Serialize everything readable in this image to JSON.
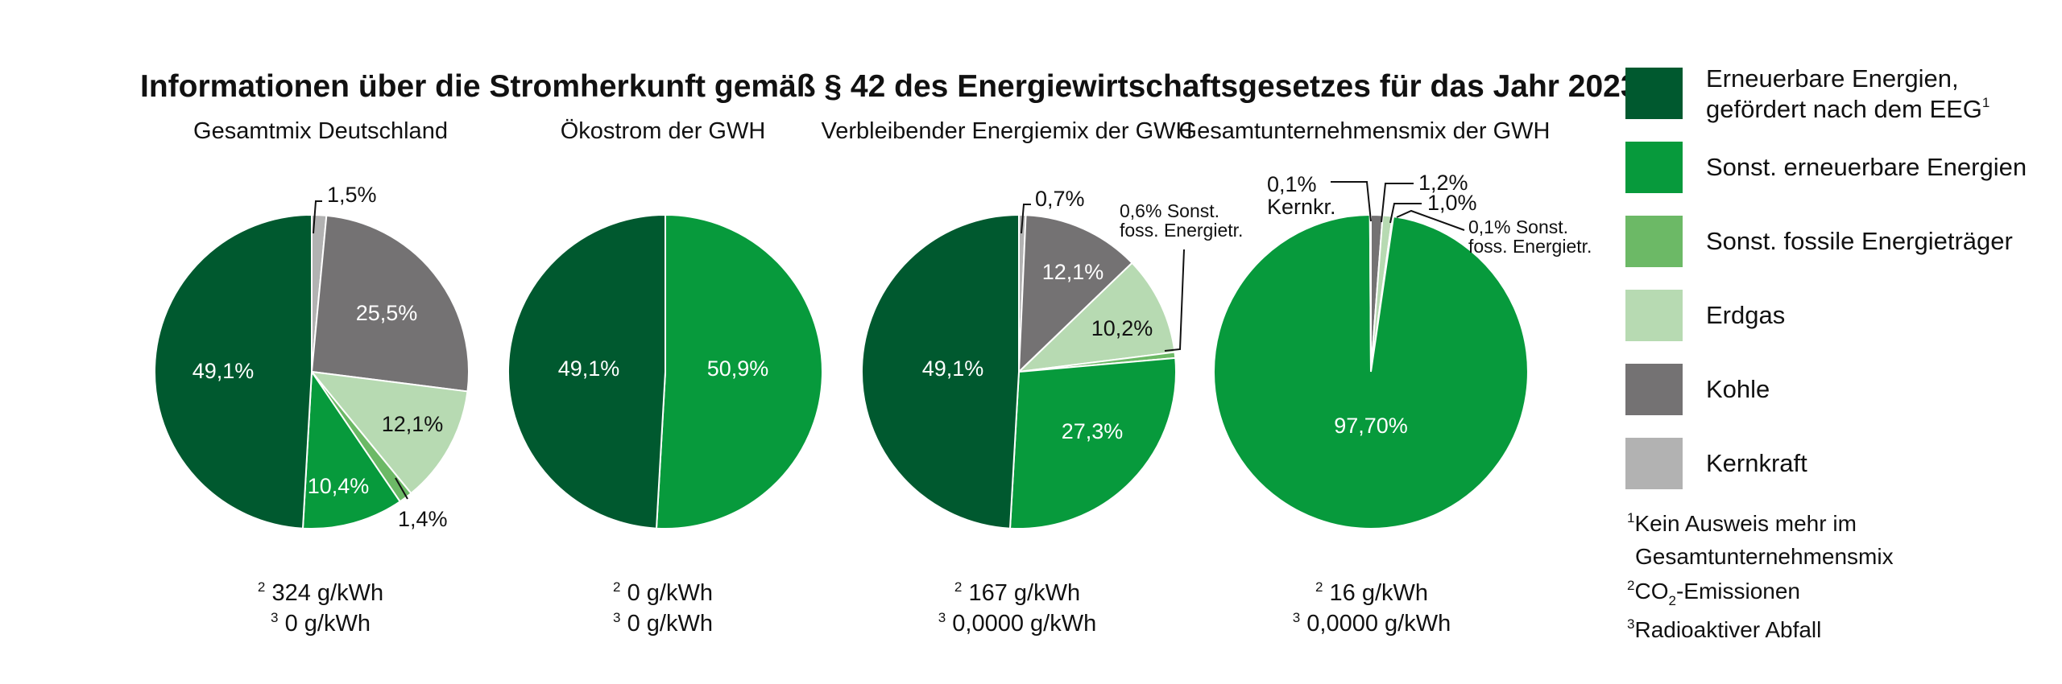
{
  "title": "Informationen über die Stromherkunft gemäß § 42 des Energiewirtschaftsgesetzes für das Jahr 2023",
  "colors": {
    "eeg": "#00592f",
    "sonst_ee": "#079a3c",
    "sonst_fossil": "#6cb966",
    "erdgas": "#b7dab2",
    "kohle": "#747273",
    "kernkraft": "#b2b2b2"
  },
  "legend": {
    "items": [
      {
        "key": "eeg",
        "lines": [
          "Erneuerbare Energien,",
          "gefördert nach dem EEG"
        ],
        "sup": "1"
      },
      {
        "key": "sonst_ee",
        "lines": [
          "Sonst. erneuerbare Energien"
        ]
      },
      {
        "key": "sonst_fossil",
        "lines": [
          "Sonst. fossile Energieträger"
        ]
      },
      {
        "key": "erdgas",
        "lines": [
          "Erdgas"
        ]
      },
      {
        "key": "kohle",
        "lines": [
          "Kohle"
        ]
      },
      {
        "key": "kernkraft",
        "lines": [
          "Kernkraft"
        ]
      }
    ],
    "notes": [
      {
        "sup": "1",
        "lines": [
          "Kein Ausweis mehr im",
          "Gesamtunternehmensmix"
        ]
      },
      {
        "sup": "2",
        "parts": [
          "CO",
          "2",
          "-Emissionen"
        ]
      },
      {
        "sup": "3",
        "lines": [
          "Radioaktiver Abfall"
        ]
      }
    ]
  },
  "chart_data": [
    {
      "type": "pie",
      "title": "Gesamtmix Deutschland",
      "slices": [
        {
          "name": "Kernkraft",
          "value": 1.5,
          "label": "1,5%",
          "color": "kernkraft"
        },
        {
          "name": "Kohle",
          "value": 25.5,
          "label": "25,5%",
          "color": "kohle"
        },
        {
          "name": "Erdgas",
          "value": 12.1,
          "label": "12,1%",
          "color": "erdgas"
        },
        {
          "name": "Sonst. fossile Energieträger",
          "value": 1.4,
          "label": "1,4%",
          "color": "sonst_fossil"
        },
        {
          "name": "Sonst. erneuerbare Energien",
          "value": 10.4,
          "label": "10,4%",
          "color": "sonst_ee"
        },
        {
          "name": "Erneuerbare Energien, gefördert nach dem EEG",
          "value": 49.1,
          "label": "49,1%",
          "color": "eeg"
        }
      ],
      "footnotes": [
        {
          "sup": "2",
          "text": "324 g/kWh"
        },
        {
          "sup": "3",
          "text": "0 g/kWh"
        }
      ]
    },
    {
      "type": "pie",
      "title": "Ökostrom der GWH",
      "slices": [
        {
          "name": "Sonst. erneuerbare Energien",
          "value": 50.9,
          "label": "50,9%",
          "color": "sonst_ee"
        },
        {
          "name": "Erneuerbare Energien, gefördert nach dem EEG",
          "value": 49.1,
          "label": "49,1%",
          "color": "eeg"
        }
      ],
      "footnotes": [
        {
          "sup": "2",
          "text": "0 g/kWh"
        },
        {
          "sup": "3",
          "text": "0 g/kWh"
        }
      ]
    },
    {
      "type": "pie",
      "title": "Verbleibender Energiemix der GWH",
      "slices": [
        {
          "name": "Kernkraft",
          "value": 0.7,
          "label": "0,7%",
          "color": "kernkraft"
        },
        {
          "name": "Kohle",
          "value": 12.1,
          "label": "12,1%",
          "color": "kohle"
        },
        {
          "name": "Erdgas",
          "value": 10.2,
          "label": "10,2%",
          "color": "erdgas"
        },
        {
          "name": "Sonst. fossile Energieträger",
          "value": 0.6,
          "label": [
            "0,6% Sonst.",
            "foss. Energietr."
          ],
          "color": "sonst_fossil"
        },
        {
          "name": "Sonst. erneuerbare Energien",
          "value": 27.3,
          "label": "27,3%",
          "color": "sonst_ee"
        },
        {
          "name": "Erneuerbare Energien, gefördert nach dem EEG",
          "value": 49.1,
          "label": "49,1%",
          "color": "eeg"
        }
      ],
      "footnotes": [
        {
          "sup": "2",
          "text": "167 g/kWh"
        },
        {
          "sup": "3",
          "text": "0,0000 g/kWh"
        }
      ]
    },
    {
      "type": "pie",
      "title": "Gesamtunternehmensmix der GWH",
      "slices": [
        {
          "name": "Kohle",
          "value": 1.2,
          "label": "1,2%",
          "color": "kohle"
        },
        {
          "name": "Erdgas",
          "value": 1.0,
          "label": "1,0%",
          "color": "erdgas"
        },
        {
          "name": "Sonst. fossile Energieträger",
          "value": 0.1,
          "label": [
            "0,1% Sonst.",
            "foss. Energietr."
          ],
          "color": "sonst_fossil"
        },
        {
          "name": "Sonst. erneuerbare Energien",
          "value": 97.7,
          "label": "97,70%",
          "color": "sonst_ee"
        },
        {
          "name": "Kernkraft",
          "value": 0.1,
          "label": [
            "0,1%",
            "Kernkr."
          ],
          "color": "kernkraft"
        }
      ],
      "footnotes": [
        {
          "sup": "2",
          "text": "16 g/kWh"
        },
        {
          "sup": "3",
          "text": "0,0000 g/kWh"
        }
      ]
    }
  ]
}
